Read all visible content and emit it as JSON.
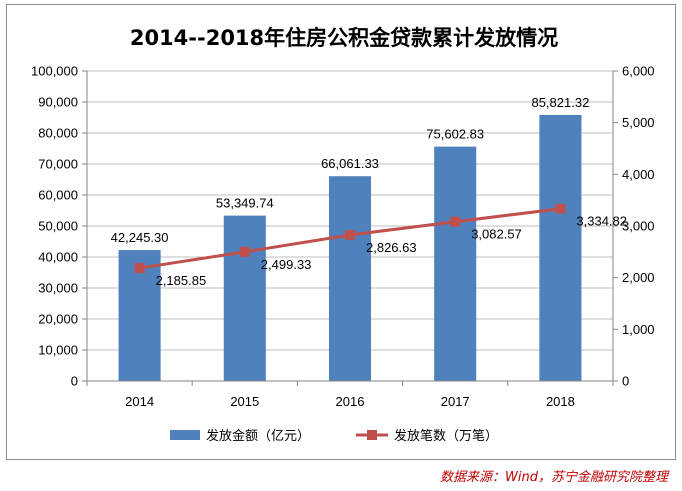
{
  "chart_data": {
    "type": "bar",
    "title": "2014--2018年住房公积金贷款累计发放情况",
    "categories": [
      "2014",
      "2015",
      "2016",
      "2017",
      "2018"
    ],
    "series": [
      {
        "name": "发放金额（亿元）",
        "kind": "bar",
        "axis": "left",
        "color": "#4f81bd",
        "values": [
          42245.3,
          53349.74,
          66061.33,
          75602.83,
          85821.32
        ],
        "labels": [
          "42,245.30",
          "53,349.74",
          "66,061.33",
          "75,602.83",
          "85,821.32"
        ]
      },
      {
        "name": "发放笔数（万笔）",
        "kind": "line",
        "axis": "right",
        "color": "#c0504d",
        "values": [
          2185.85,
          2499.33,
          2826.63,
          3082.57,
          3334.82
        ],
        "labels": [
          "2,185.85",
          "2,499.33",
          "2,826.63",
          "3,082.57",
          "3,334.82"
        ]
      }
    ],
    "y_left": {
      "ylim": [
        0,
        100000
      ],
      "ticks": [
        0,
        10000,
        20000,
        30000,
        40000,
        50000,
        60000,
        70000,
        80000,
        90000,
        100000
      ],
      "tick_labels": [
        "0",
        "10,000",
        "20,000",
        "30,000",
        "40,000",
        "50,000",
        "60,000",
        "70,000",
        "80,000",
        "90,000",
        "100,000"
      ]
    },
    "y_right": {
      "ylim": [
        0,
        6000
      ],
      "ticks": [
        0,
        1000,
        2000,
        3000,
        4000,
        5000,
        6000
      ],
      "tick_labels": [
        "0",
        "1,000",
        "2,000",
        "3,000",
        "4,000",
        "5,000",
        "6,000"
      ]
    },
    "grid": true,
    "legend_position": "bottom"
  },
  "source_note": "数据来源：Wind，苏宁金融研究院整理"
}
